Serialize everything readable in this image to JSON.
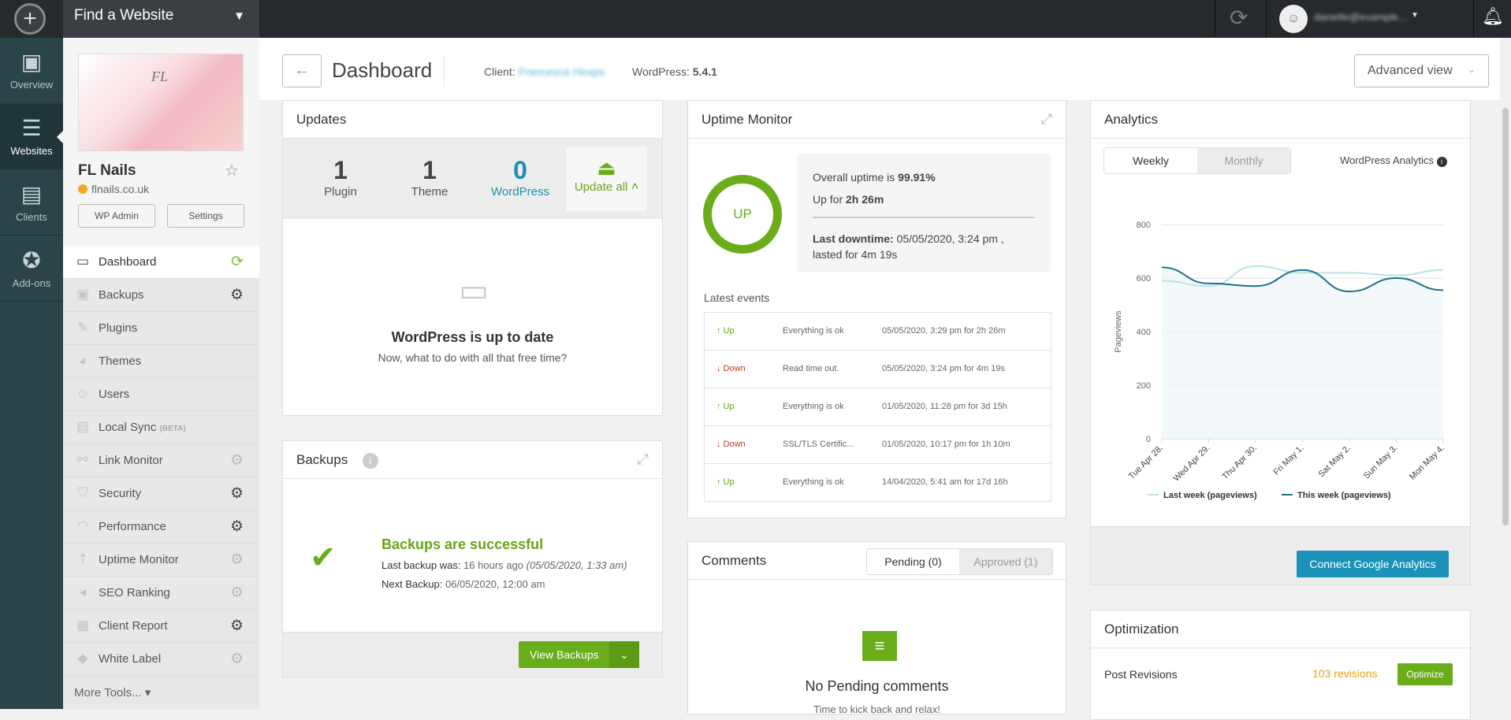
{
  "topbar": {
    "site_picker": "Find a Website",
    "user": "danielle@example..."
  },
  "rail": [
    {
      "label": "Overview",
      "icon": "chart-monitor-icon"
    },
    {
      "label": "Websites",
      "icon": "websites-icon"
    },
    {
      "label": "Clients",
      "icon": "clients-icon"
    },
    {
      "label": "Add-ons",
      "icon": "addons-star-icon"
    }
  ],
  "site": {
    "name": "FL Nails",
    "url": "flnails.co.uk",
    "wp_admin": "WP Admin",
    "settings": "Settings",
    "thumb_text": "FL"
  },
  "nav": [
    {
      "label": "Dashboard",
      "gear": "refresh"
    },
    {
      "label": "Backups",
      "gear": "dark"
    },
    {
      "label": "Plugins"
    },
    {
      "label": "Themes"
    },
    {
      "label": "Users"
    },
    {
      "label": "Local Sync",
      "badge": "(BETA)"
    },
    {
      "label": "Link Monitor",
      "gear": "light"
    },
    {
      "label": "Security",
      "gear": "dark"
    },
    {
      "label": "Performance",
      "gear": "dark"
    },
    {
      "label": "Uptime Monitor",
      "gear": "light"
    },
    {
      "label": "SEO Ranking",
      "gear": "light"
    },
    {
      "label": "Client Report",
      "gear": "dark"
    },
    {
      "label": "White Label",
      "gear": "light"
    }
  ],
  "more_tools": "More Tools...",
  "header": {
    "title": "Dashboard",
    "client_label": "Client:",
    "client": "Francesca Heaps",
    "wp_label": "WordPress:",
    "wp_version": "5.4.1",
    "view": "Advanced view"
  },
  "updates": {
    "title": "Updates",
    "plugin_count": "1",
    "plugin_label": "Plugin",
    "theme_count": "1",
    "theme_label": "Theme",
    "wp_count": "0",
    "wp_label": "WordPress",
    "update_all": "Update all",
    "status": "WordPress is up to date",
    "sub": "Now, what to do with all that free time?"
  },
  "backups": {
    "title": "Backups",
    "status": "Backups are successful",
    "last_label": "Last backup was:",
    "last": "16 hours ago",
    "last_date": "(05/05/2020, 1:33 am)",
    "next_label": "Next Backup:",
    "next": "06/05/2020, 12:00 am",
    "view": "View Backups"
  },
  "uptime": {
    "title": "Uptime Monitor",
    "state": "UP",
    "overall_label": "Overall uptime is",
    "overall": "99.91%",
    "upfor_label": "Up for",
    "upfor": "2h 26m",
    "last_label": "Last downtime:",
    "last": "05/05/2020, 3:24 pm ,",
    "lasted": "lasted for 4m 19s",
    "events_title": "Latest events",
    "events": [
      {
        "status": "↑ Up",
        "type": "up",
        "msg": "Everything is ok",
        "when": "05/05/2020, 3:29 pm for 2h 26m"
      },
      {
        "status": "↓ Down",
        "type": "down",
        "msg": "Read time out.",
        "when": "05/05/2020, 3:24 pm for 4m 19s"
      },
      {
        "status": "↑ Up",
        "type": "up",
        "msg": "Everything is ok",
        "when": "01/05/2020, 11:28 pm for 3d 15h"
      },
      {
        "status": "↓ Down",
        "type": "down",
        "msg": "SSL/TLS Certific...",
        "when": "01/05/2020, 10:17 pm for 1h 10m"
      },
      {
        "status": "↑ Up",
        "type": "up",
        "msg": "Everything is ok",
        "when": "14/04/2020, 5:41 am for 17d 16h"
      }
    ]
  },
  "comments": {
    "title": "Comments",
    "pending": "Pending (0)",
    "approved": "Approved (1)",
    "empty": "No Pending comments",
    "sub": "Time to kick back and relax!"
  },
  "analytics": {
    "title": "Analytics",
    "weekly": "Weekly",
    "monthly": "Monthly",
    "source": "WordPress Analytics",
    "connect": "Connect Google Analytics"
  },
  "optimization": {
    "title": "Optimization",
    "row_label": "Post Revisions",
    "row_value": "103 revisions",
    "row_button": "Optimize"
  },
  "colors": {
    "green": "#6aad1a",
    "teal": "#1b8fb0",
    "last_week": "#b9e3e3",
    "this_week": "#1f6f8b"
  },
  "chart_data": {
    "type": "line",
    "ylabel": "Pageviews",
    "ylim": [
      0,
      800
    ],
    "yticks": [
      0,
      200,
      400,
      600,
      800
    ],
    "categories": [
      "Tue Apr 28.",
      "Wed Apr 29.",
      "Thu Apr 30.",
      "Fri May 1.",
      "Sat May 2.",
      "Sun May 3.",
      "Mon May 4."
    ],
    "grid": true,
    "legend": "bottom",
    "series": [
      {
        "name": "Last week (pageviews)",
        "values": [
          590,
          570,
          645,
          620,
          620,
          610,
          630
        ]
      },
      {
        "name": "This week (pageviews)",
        "values": [
          640,
          580,
          570,
          630,
          550,
          600,
          555
        ]
      }
    ]
  }
}
